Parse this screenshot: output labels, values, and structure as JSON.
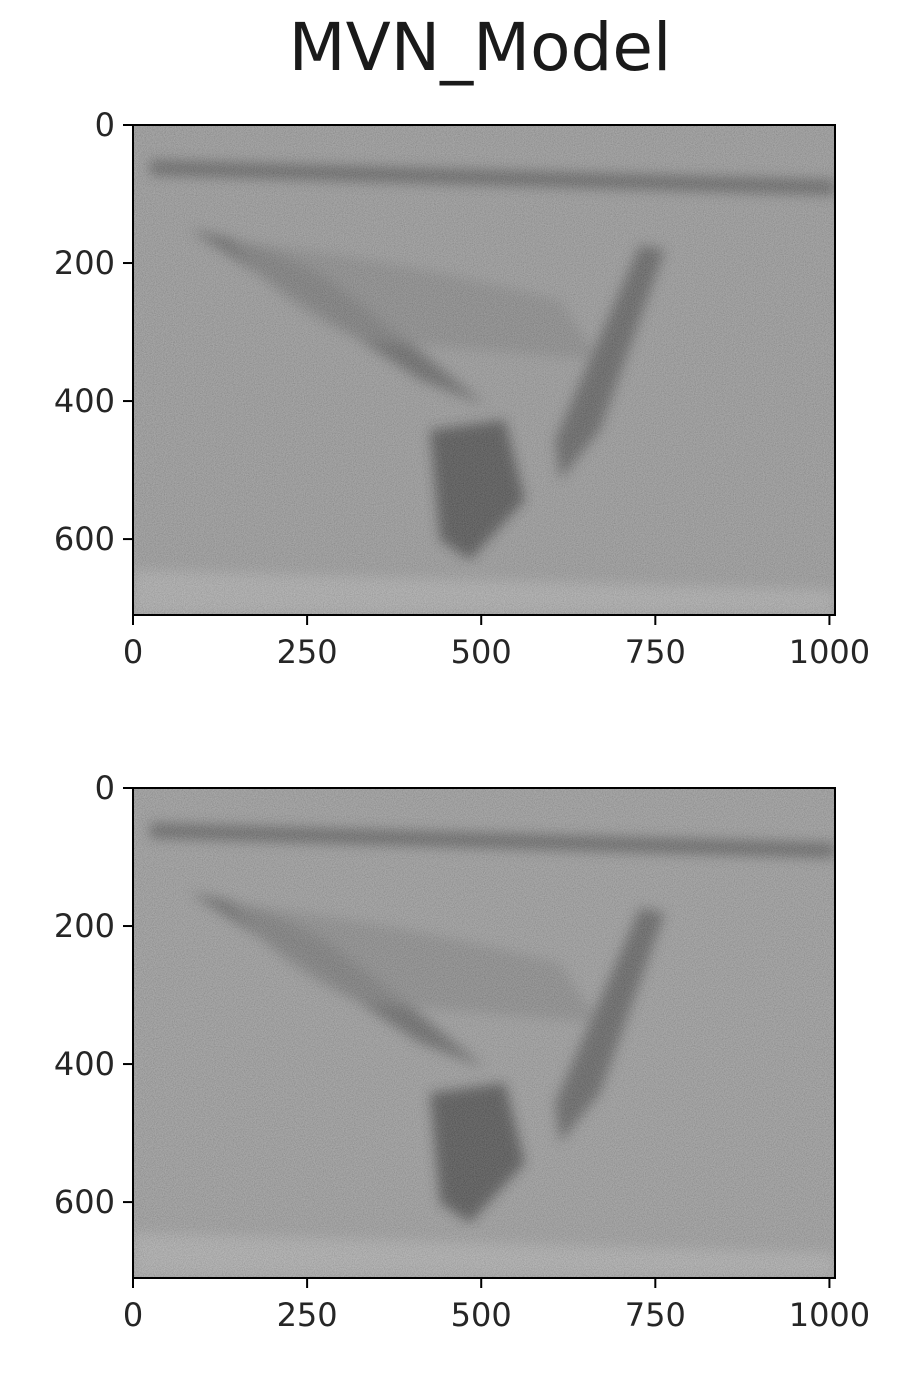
{
  "title": "MVN_Model",
  "panels": [
    {
      "id": "top",
      "xticks": [
        "0",
        "250",
        "500",
        "750",
        "1000"
      ],
      "yticks": [
        "0",
        "200",
        "400",
        "600"
      ],
      "xlim": [
        0,
        1008
      ],
      "ylim": [
        0,
        710
      ],
      "xtick_values": [
        0,
        250,
        500,
        750,
        1000
      ],
      "ytick_values": [
        0,
        200,
        400,
        600
      ]
    },
    {
      "id": "bottom",
      "xticks": [
        "0",
        "250",
        "500",
        "750",
        "1000"
      ],
      "yticks": [
        "0",
        "200",
        "400",
        "600"
      ],
      "xlim": [
        0,
        1008
      ],
      "ylim": [
        0,
        710
      ],
      "xtick_values": [
        0,
        250,
        500,
        750,
        1000
      ],
      "ytick_values": [
        0,
        200,
        400,
        600
      ]
    }
  ],
  "image_colormap": "gray"
}
